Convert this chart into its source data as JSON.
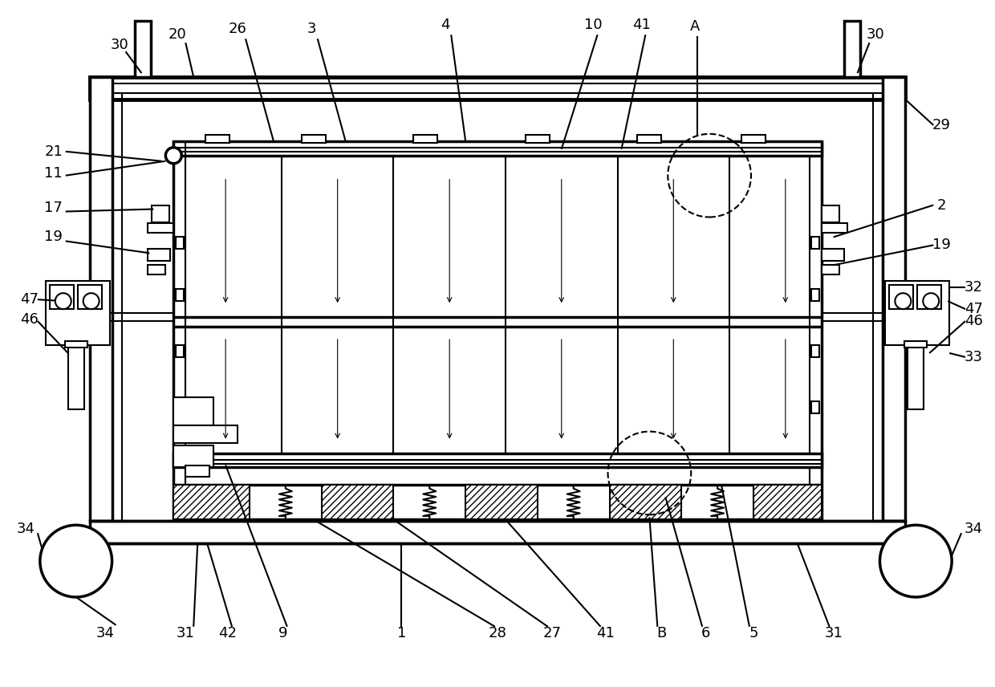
{
  "bg_color": "#ffffff",
  "lc": "#000000",
  "lw": 1.5,
  "lw2": 2.5,
  "lw3": 3.5,
  "fs": 13
}
